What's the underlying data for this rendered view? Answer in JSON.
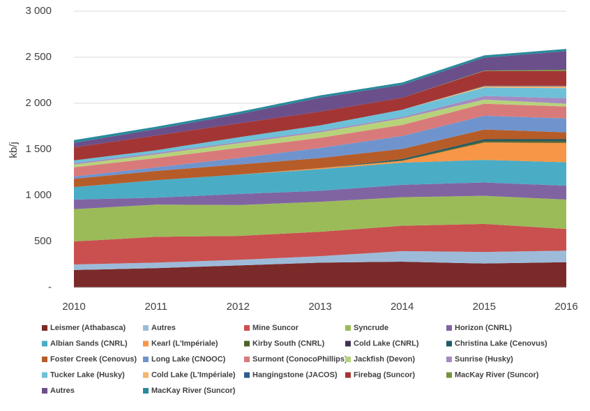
{
  "chart_data": {
    "type": "stacked_area",
    "y_label": "kb/j",
    "categories": [
      "2010",
      "2011",
      "2012",
      "2013",
      "2014",
      "2015",
      "2016"
    ],
    "ylim": [
      0,
      3000
    ],
    "yticks": [
      {
        "value": 0,
        "label": "-"
      },
      500,
      {
        "value": 1000,
        "label": "1 000"
      },
      {
        "value": 1500,
        "label": "1 500"
      },
      {
        "value": 2000,
        "label": "2 000"
      },
      {
        "value": 2500,
        "label": "2 500"
      },
      {
        "value": 3000,
        "label": "3 000"
      }
    ],
    "grid": true,
    "series": [
      {
        "name": "Leismer (Athabasca)",
        "color": "#7b2a2a",
        "values": [
          190,
          210,
          240,
          270,
          280,
          260,
          275
        ]
      },
      {
        "name": "Autres",
        "color": "#9dbbd9",
        "values": [
          60,
          60,
          60,
          70,
          115,
          125,
          125
        ]
      },
      {
        "name": "Mine Suncor",
        "color": "#c9504f",
        "values": [
          250,
          280,
          260,
          265,
          275,
          305,
          235
        ]
      },
      {
        "name": "Syncrude",
        "color": "#9bbb59",
        "values": [
          350,
          350,
          335,
          325,
          310,
          305,
          320
        ]
      },
      {
        "name": "Horizon (CNRL)",
        "color": "#8064a2",
        "values": [
          105,
          75,
          120,
          120,
          135,
          145,
          150
        ]
      },
      {
        "name": "Albian Sands (CNRL)",
        "color": "#4bacc6",
        "values": [
          135,
          190,
          210,
          235,
          240,
          245,
          255
        ]
      },
      {
        "name": "Kearl (L'Impériale)",
        "color": "#f79646",
        "values": [
          0,
          0,
          0,
          10,
          20,
          190,
          210
        ]
      },
      {
        "name": "Kirby South (CNRL)",
        "color": "#4f6228",
        "values": [
          0,
          0,
          0,
          0,
          5,
          15,
          20
        ]
      },
      {
        "name": "Cold Lake (CNRL)",
        "color": "#3f3151",
        "values": [
          0,
          0,
          0,
          0,
          0,
          0,
          0
        ]
      },
      {
        "name": "Christina Lake (Cenovus)",
        "color": "#215967",
        "values": [
          0,
          0,
          0,
          0,
          15,
          20,
          20
        ]
      },
      {
        "name": "Foster Creek (Cenovus)",
        "color": "#b65c28",
        "values": [
          90,
          100,
          110,
          110,
          110,
          105,
          75
        ]
      },
      {
        "name": "Long Lake (CNOOC)",
        "color": "#6f94cd",
        "values": [
          25,
          40,
          70,
          110,
          140,
          150,
          150
        ]
      },
      {
        "name": "Surmont (ConocoPhillips)",
        "color": "#d97a7a",
        "values": [
          100,
          100,
          110,
          110,
          120,
          130,
          130
        ]
      },
      {
        "name": "Jackfish (Devon)",
        "color": "#b8d27c",
        "values": [
          30,
          40,
          50,
          60,
          70,
          45,
          30
        ]
      },
      {
        "name": "Sunrise (Husky)",
        "color": "#a48bc0",
        "values": [
          15,
          15,
          15,
          15,
          15,
          40,
          60
        ]
      },
      {
        "name": "Tucker Lake (Husky)",
        "color": "#6ec0d8",
        "values": [
          30,
          30,
          50,
          60,
          80,
          90,
          110
        ]
      },
      {
        "name": "Cold Lake (L'Impériale)",
        "color": "#f9b26f",
        "values": [
          0,
          0,
          0,
          0,
          0,
          15,
          20
        ]
      },
      {
        "name": "Hangingstone (JACOS)",
        "color": "#2c5d8f",
        "values": [
          0,
          0,
          0,
          0,
          0,
          5,
          5
        ]
      },
      {
        "name": "Firebag (Suncor)",
        "color": "#a33634",
        "values": [
          140,
          160,
          150,
          150,
          130,
          160,
          160
        ]
      },
      {
        "name": "MacKay River (Suncor)",
        "color": "#76923c",
        "values": [
          0,
          0,
          0,
          0,
          0,
          5,
          15
        ]
      },
      {
        "name": "Autres",
        "color": "#6b4f8a",
        "values": [
          50,
          70,
          100,
          150,
          140,
          140,
          200
        ]
      },
      {
        "name": "MacKay River (Suncor)",
        "color": "#2a8a9a",
        "values": [
          30,
          25,
          25,
          25,
          25,
          25,
          25
        ]
      }
    ]
  }
}
